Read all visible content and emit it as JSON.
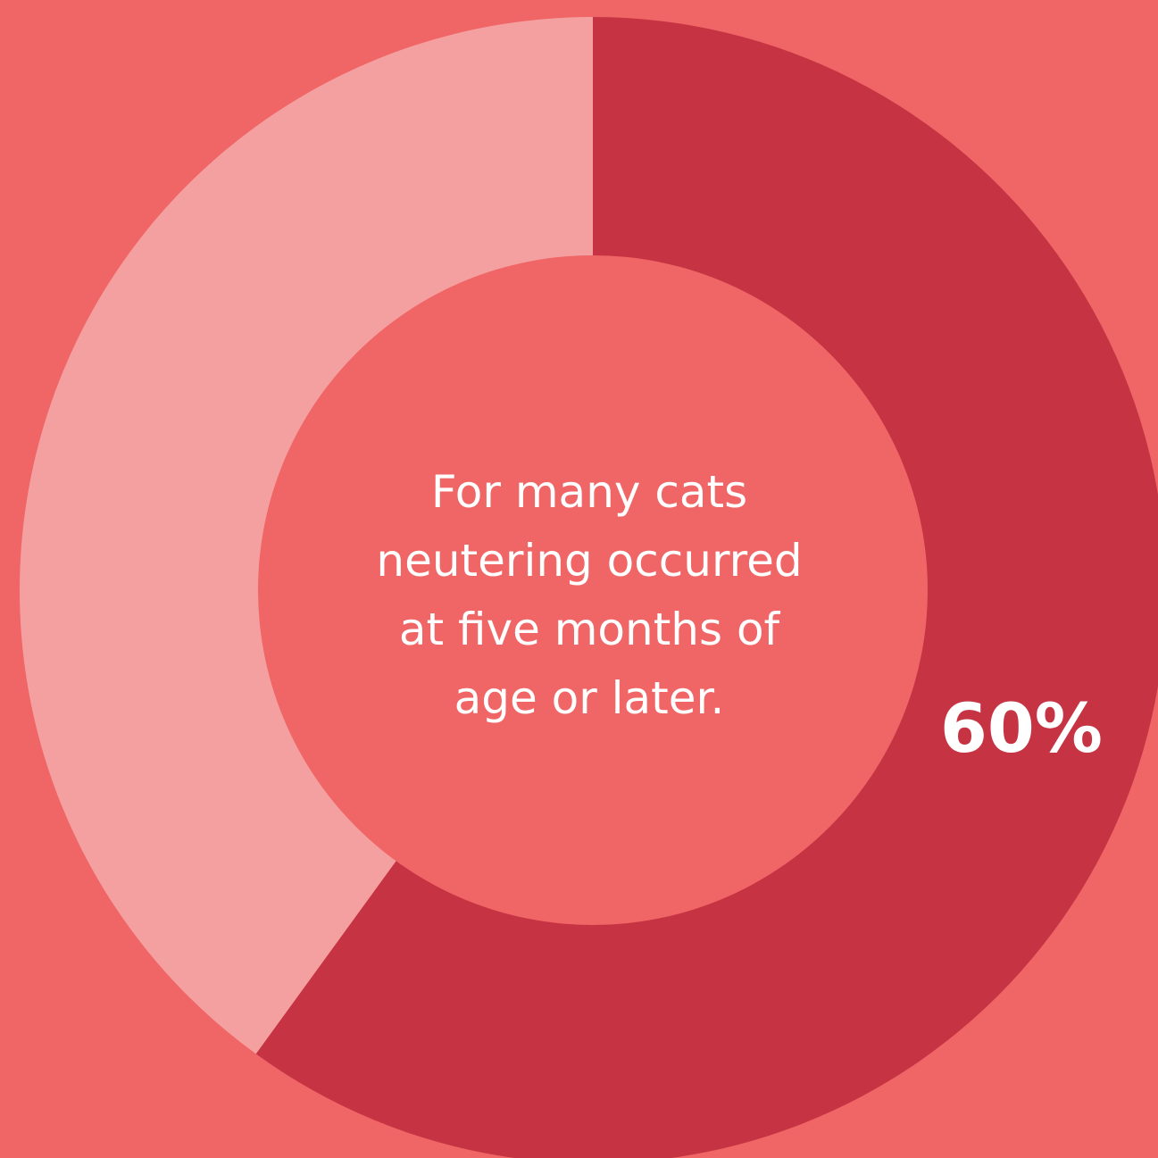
{
  "colors": {
    "background": "#f06565",
    "hole": "#f06565",
    "text": "#ffffff"
  },
  "chart_data": {
    "type": "pie",
    "donut": true,
    "slices": [
      {
        "value": 60,
        "color": "#c63444",
        "label": "60%"
      },
      {
        "value": 40,
        "color": "#f5a0a0",
        "label": ""
      }
    ],
    "start": "12-o'clock",
    "direction": "clockwise",
    "center_text": [
      "For many cats",
      "neutering occurred",
      "at five months of",
      "age or later."
    ]
  }
}
